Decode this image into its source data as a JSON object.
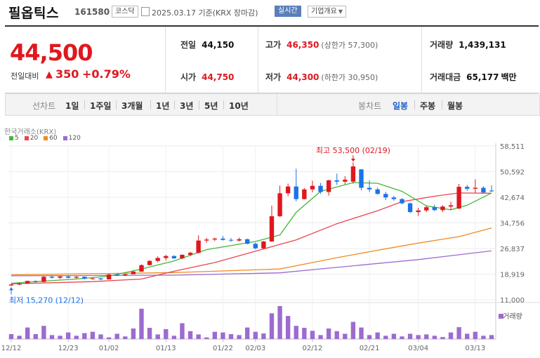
{
  "header": {
    "stock_name": "필옵틱스",
    "stock_code": "161580",
    "market": "코스닥",
    "date": "2025.03.17 기준(KRX 장마감)",
    "realtime": "실시간",
    "company_info": "기업개요"
  },
  "summary": {
    "current_price": "44,500",
    "change_label": "전일대비",
    "change_arrow": "▲",
    "change_value": "350",
    "change_pct": "+0.79%",
    "prev_close_label": "전일",
    "prev_close": "44,150",
    "open_label": "시가",
    "open": "44,750",
    "high_label": "고가",
    "high": "46,350",
    "upper_limit": "(상한가 57,300)",
    "low_label": "저가",
    "low": "44,300",
    "lower_limit": "(하한가 30,950)",
    "volume_label": "거래량",
    "volume": "1,439,131",
    "amount_label": "거래대금",
    "amount": "65,177",
    "amount_unit": "백만"
  },
  "tabs": {
    "line_label": "선차트",
    "line_periods": [
      "1일",
      "1주일",
      "3개월",
      "1년",
      "3년",
      "5년",
      "10년"
    ],
    "candle_label": "봉차트",
    "candle_periods": [
      "일봉",
      "주봉",
      "월봉"
    ],
    "candle_selected": "일봉"
  },
  "chart_data": {
    "type": "candlestick",
    "source_label": "한국거래소(KRX)",
    "volume_label": "거래량",
    "ylim": [
      11000,
      58511
    ],
    "y_ticks": [
      "58,511",
      "50,592",
      "42,674",
      "34,756",
      "26,837",
      "18,919",
      "11,000"
    ],
    "x_ticks": [
      "12/12",
      "12/23",
      "01/02",
      "01/13",
      "01/22",
      "02/03",
      "02/12",
      "02/21",
      "03/04",
      "03/13"
    ],
    "ma_legend": [
      {
        "name": "5",
        "color": "#42b93a"
      },
      {
        "name": "20",
        "color": "#e8464f"
      },
      {
        "name": "60",
        "color": "#f08a1f"
      },
      {
        "name": "120",
        "color": "#9d6bd0"
      }
    ],
    "annotations": {
      "high": "최고 53,500 (02/19)",
      "low": "최저 15,270 (12/12)"
    },
    "candles": [
      {
        "d": "12/12",
        "o": 15400,
        "h": 15900,
        "l": 15270,
        "c": 15700
      },
      {
        "d": "12/13",
        "o": 15700,
        "h": 16300,
        "l": 15500,
        "c": 16000
      },
      {
        "d": "12/16",
        "o": 16000,
        "h": 16900,
        "l": 15900,
        "c": 16800
      },
      {
        "d": "12/17",
        "o": 16800,
        "h": 16900,
        "l": 16200,
        "c": 16500
      },
      {
        "d": "12/18",
        "o": 16500,
        "h": 18300,
        "l": 16400,
        "c": 18100
      },
      {
        "d": "12/19",
        "o": 18100,
        "h": 18600,
        "l": 17500,
        "c": 17800
      },
      {
        "d": "12/20",
        "o": 17800,
        "h": 18400,
        "l": 17400,
        "c": 18200
      },
      {
        "d": "12/23",
        "o": 18200,
        "h": 18600,
        "l": 17600,
        "c": 17800
      },
      {
        "d": "12/24",
        "o": 17800,
        "h": 18300,
        "l": 17500,
        "c": 18100
      },
      {
        "d": "12/26",
        "o": 18100,
        "h": 18200,
        "l": 17300,
        "c": 17500
      },
      {
        "d": "12/27",
        "o": 17500,
        "h": 17800,
        "l": 17200,
        "c": 17600
      },
      {
        "d": "12/30",
        "o": 17600,
        "h": 17700,
        "l": 17000,
        "c": 17300
      },
      {
        "d": "01/02",
        "o": 17300,
        "h": 19000,
        "l": 17200,
        "c": 18800
      },
      {
        "d": "01/03",
        "o": 18800,
        "h": 19100,
        "l": 18300,
        "c": 18500
      },
      {
        "d": "01/06",
        "o": 18500,
        "h": 19000,
        "l": 18300,
        "c": 18900
      },
      {
        "d": "01/07",
        "o": 18900,
        "h": 20000,
        "l": 18800,
        "c": 19700
      },
      {
        "d": "01/08",
        "o": 19700,
        "h": 21900,
        "l": 19600,
        "c": 21700
      },
      {
        "d": "01/09",
        "o": 21700,
        "h": 23200,
        "l": 21600,
        "c": 23000
      },
      {
        "d": "01/10",
        "o": 23000,
        "h": 24400,
        "l": 22600,
        "c": 23900
      },
      {
        "d": "01/13",
        "o": 23900,
        "h": 24900,
        "l": 23100,
        "c": 24500
      },
      {
        "d": "01/14",
        "o": 24500,
        "h": 24800,
        "l": 23600,
        "c": 23800
      },
      {
        "d": "01/15",
        "o": 23800,
        "h": 25000,
        "l": 23500,
        "c": 24900
      },
      {
        "d": "01/16",
        "o": 24900,
        "h": 25800,
        "l": 24500,
        "c": 25500
      },
      {
        "d": "01/17",
        "o": 25500,
        "h": 30900,
        "l": 25300,
        "c": 29300
      },
      {
        "d": "01/20",
        "o": 29300,
        "h": 30100,
        "l": 28600,
        "c": 29600
      },
      {
        "d": "01/21",
        "o": 29600,
        "h": 30200,
        "l": 29100,
        "c": 29900
      },
      {
        "d": "01/22",
        "o": 29900,
        "h": 30700,
        "l": 29300,
        "c": 29500
      },
      {
        "d": "01/23",
        "o": 29500,
        "h": 30100,
        "l": 28900,
        "c": 29300
      },
      {
        "d": "01/24",
        "o": 29300,
        "h": 30200,
        "l": 29000,
        "c": 29700
      },
      {
        "d": "01/31",
        "o": 29700,
        "h": 29900,
        "l": 28100,
        "c": 28300
      },
      {
        "d": "02/03",
        "o": 28300,
        "h": 28700,
        "l": 26600,
        "c": 26900
      },
      {
        "d": "02/04",
        "o": 26900,
        "h": 29200,
        "l": 26600,
        "c": 29000
      },
      {
        "d": "02/05",
        "o": 29000,
        "h": 40100,
        "l": 28900,
        "c": 36800
      },
      {
        "d": "02/06",
        "o": 36800,
        "h": 46300,
        "l": 36600,
        "c": 43900
      },
      {
        "d": "02/07",
        "o": 43900,
        "h": 46900,
        "l": 43000,
        "c": 46000
      },
      {
        "d": "02/10",
        "o": 46000,
        "h": 51500,
        "l": 41400,
        "c": 42100
      },
      {
        "d": "02/11",
        "o": 42100,
        "h": 45500,
        "l": 42000,
        "c": 45100
      },
      {
        "d": "02/12",
        "o": 45100,
        "h": 47800,
        "l": 44200,
        "c": 46200
      },
      {
        "d": "02/13",
        "o": 46200,
        "h": 47100,
        "l": 43700,
        "c": 44300
      },
      {
        "d": "02/14",
        "o": 44300,
        "h": 48100,
        "l": 43200,
        "c": 47900
      },
      {
        "d": "02/17",
        "o": 47900,
        "h": 50000,
        "l": 46500,
        "c": 47500
      },
      {
        "d": "02/18",
        "o": 47500,
        "h": 49200,
        "l": 46700,
        "c": 48100
      },
      {
        "d": "02/19",
        "o": 47500,
        "h": 53500,
        "l": 46900,
        "c": 52200
      },
      {
        "d": "02/20",
        "o": 51300,
        "h": 51300,
        "l": 44800,
        "c": 45600
      },
      {
        "d": "02/21",
        "o": 45600,
        "h": 47900,
        "l": 44300,
        "c": 45100
      },
      {
        "d": "02/24",
        "o": 45100,
        "h": 45700,
        "l": 43500,
        "c": 43700
      },
      {
        "d": "02/25",
        "o": 43700,
        "h": 44400,
        "l": 41800,
        "c": 42600
      },
      {
        "d": "02/26",
        "o": 42600,
        "h": 43100,
        "l": 41600,
        "c": 42100
      },
      {
        "d": "02/27",
        "o": 42100,
        "h": 42400,
        "l": 40500,
        "c": 40800
      },
      {
        "d": "02/28",
        "o": 40800,
        "h": 41100,
        "l": 37800,
        "c": 38100
      },
      {
        "d": "03/04",
        "o": 38100,
        "h": 39400,
        "l": 36900,
        "c": 38600
      },
      {
        "d": "03/05",
        "o": 38600,
        "h": 40100,
        "l": 38100,
        "c": 39600
      },
      {
        "d": "03/06",
        "o": 39600,
        "h": 40400,
        "l": 38400,
        "c": 38700
      },
      {
        "d": "03/07",
        "o": 38700,
        "h": 40200,
        "l": 38100,
        "c": 39800
      },
      {
        "d": "03/10",
        "o": 39800,
        "h": 41300,
        "l": 38800,
        "c": 40200
      },
      {
        "d": "03/11",
        "o": 39200,
        "h": 46800,
        "l": 39000,
        "c": 45900
      },
      {
        "d": "03/12",
        "o": 45900,
        "h": 46500,
        "l": 44600,
        "c": 45300
      },
      {
        "d": "03/13",
        "o": 45300,
        "h": 48200,
        "l": 44100,
        "c": 45600
      },
      {
        "d": "03/14",
        "o": 45600,
        "h": 46100,
        "l": 43800,
        "c": 44150
      },
      {
        "d": "03/17",
        "o": 44750,
        "h": 46350,
        "l": 44300,
        "c": 44500
      }
    ],
    "volume_rel": [
      0.15,
      0.1,
      0.35,
      0.15,
      0.4,
      0.12,
      0.1,
      0.2,
      0.1,
      0.18,
      0.22,
      0.14,
      0.05,
      0.16,
      0.08,
      0.32,
      0.92,
      0.34,
      0.14,
      0.3,
      0.1,
      0.48,
      0.24,
      0.14,
      0.05,
      0.22,
      0.2,
      0.15,
      0.12,
      0.35,
      0.22,
      0.17,
      0.78,
      1.0,
      0.7,
      0.4,
      0.34,
      0.25,
      0.12,
      0.32,
      0.24,
      0.16,
      0.52,
      0.35,
      0.12,
      0.2,
      0.1,
      0.16,
      0.08,
      0.16,
      0.12,
      0.14,
      0.1,
      0.06,
      0.2,
      0.36,
      0.16,
      0.22,
      0.1,
      0.12
    ],
    "ma": {
      "5": [
        [
          0,
          16100
        ],
        [
          8,
          17400
        ],
        [
          12,
          18300
        ],
        [
          16,
          20500
        ],
        [
          20,
          23000
        ],
        [
          24,
          26500
        ],
        [
          30,
          29000
        ],
        [
          33,
          31000
        ],
        [
          35,
          38000
        ],
        [
          38,
          44500
        ],
        [
          42,
          47200
        ],
        [
          45,
          47000
        ],
        [
          48,
          44500
        ],
        [
          51,
          40000
        ],
        [
          54,
          38800
        ],
        [
          56,
          40200
        ],
        [
          59,
          44000
        ]
      ],
      "20": [
        [
          0,
          15900
        ],
        [
          10,
          16600
        ],
        [
          16,
          17400
        ],
        [
          20,
          19800
        ],
        [
          25,
          22500
        ],
        [
          30,
          26000
        ],
        [
          35,
          29500
        ],
        [
          40,
          34500
        ],
        [
          45,
          38500
        ],
        [
          48,
          41300
        ],
        [
          52,
          43000
        ],
        [
          55,
          44000
        ],
        [
          59,
          43900
        ]
      ],
      "60": [
        [
          0,
          18700
        ],
        [
          20,
          19400
        ],
        [
          33,
          20500
        ],
        [
          40,
          24000
        ],
        [
          45,
          26300
        ],
        [
          50,
          28500
        ],
        [
          55,
          30500
        ],
        [
          59,
          33200
        ]
      ],
      "120": [
        [
          0,
          18400
        ],
        [
          20,
          18600
        ],
        [
          33,
          19300
        ],
        [
          40,
          21000
        ],
        [
          50,
          23400
        ],
        [
          59,
          26100
        ]
      ]
    }
  }
}
